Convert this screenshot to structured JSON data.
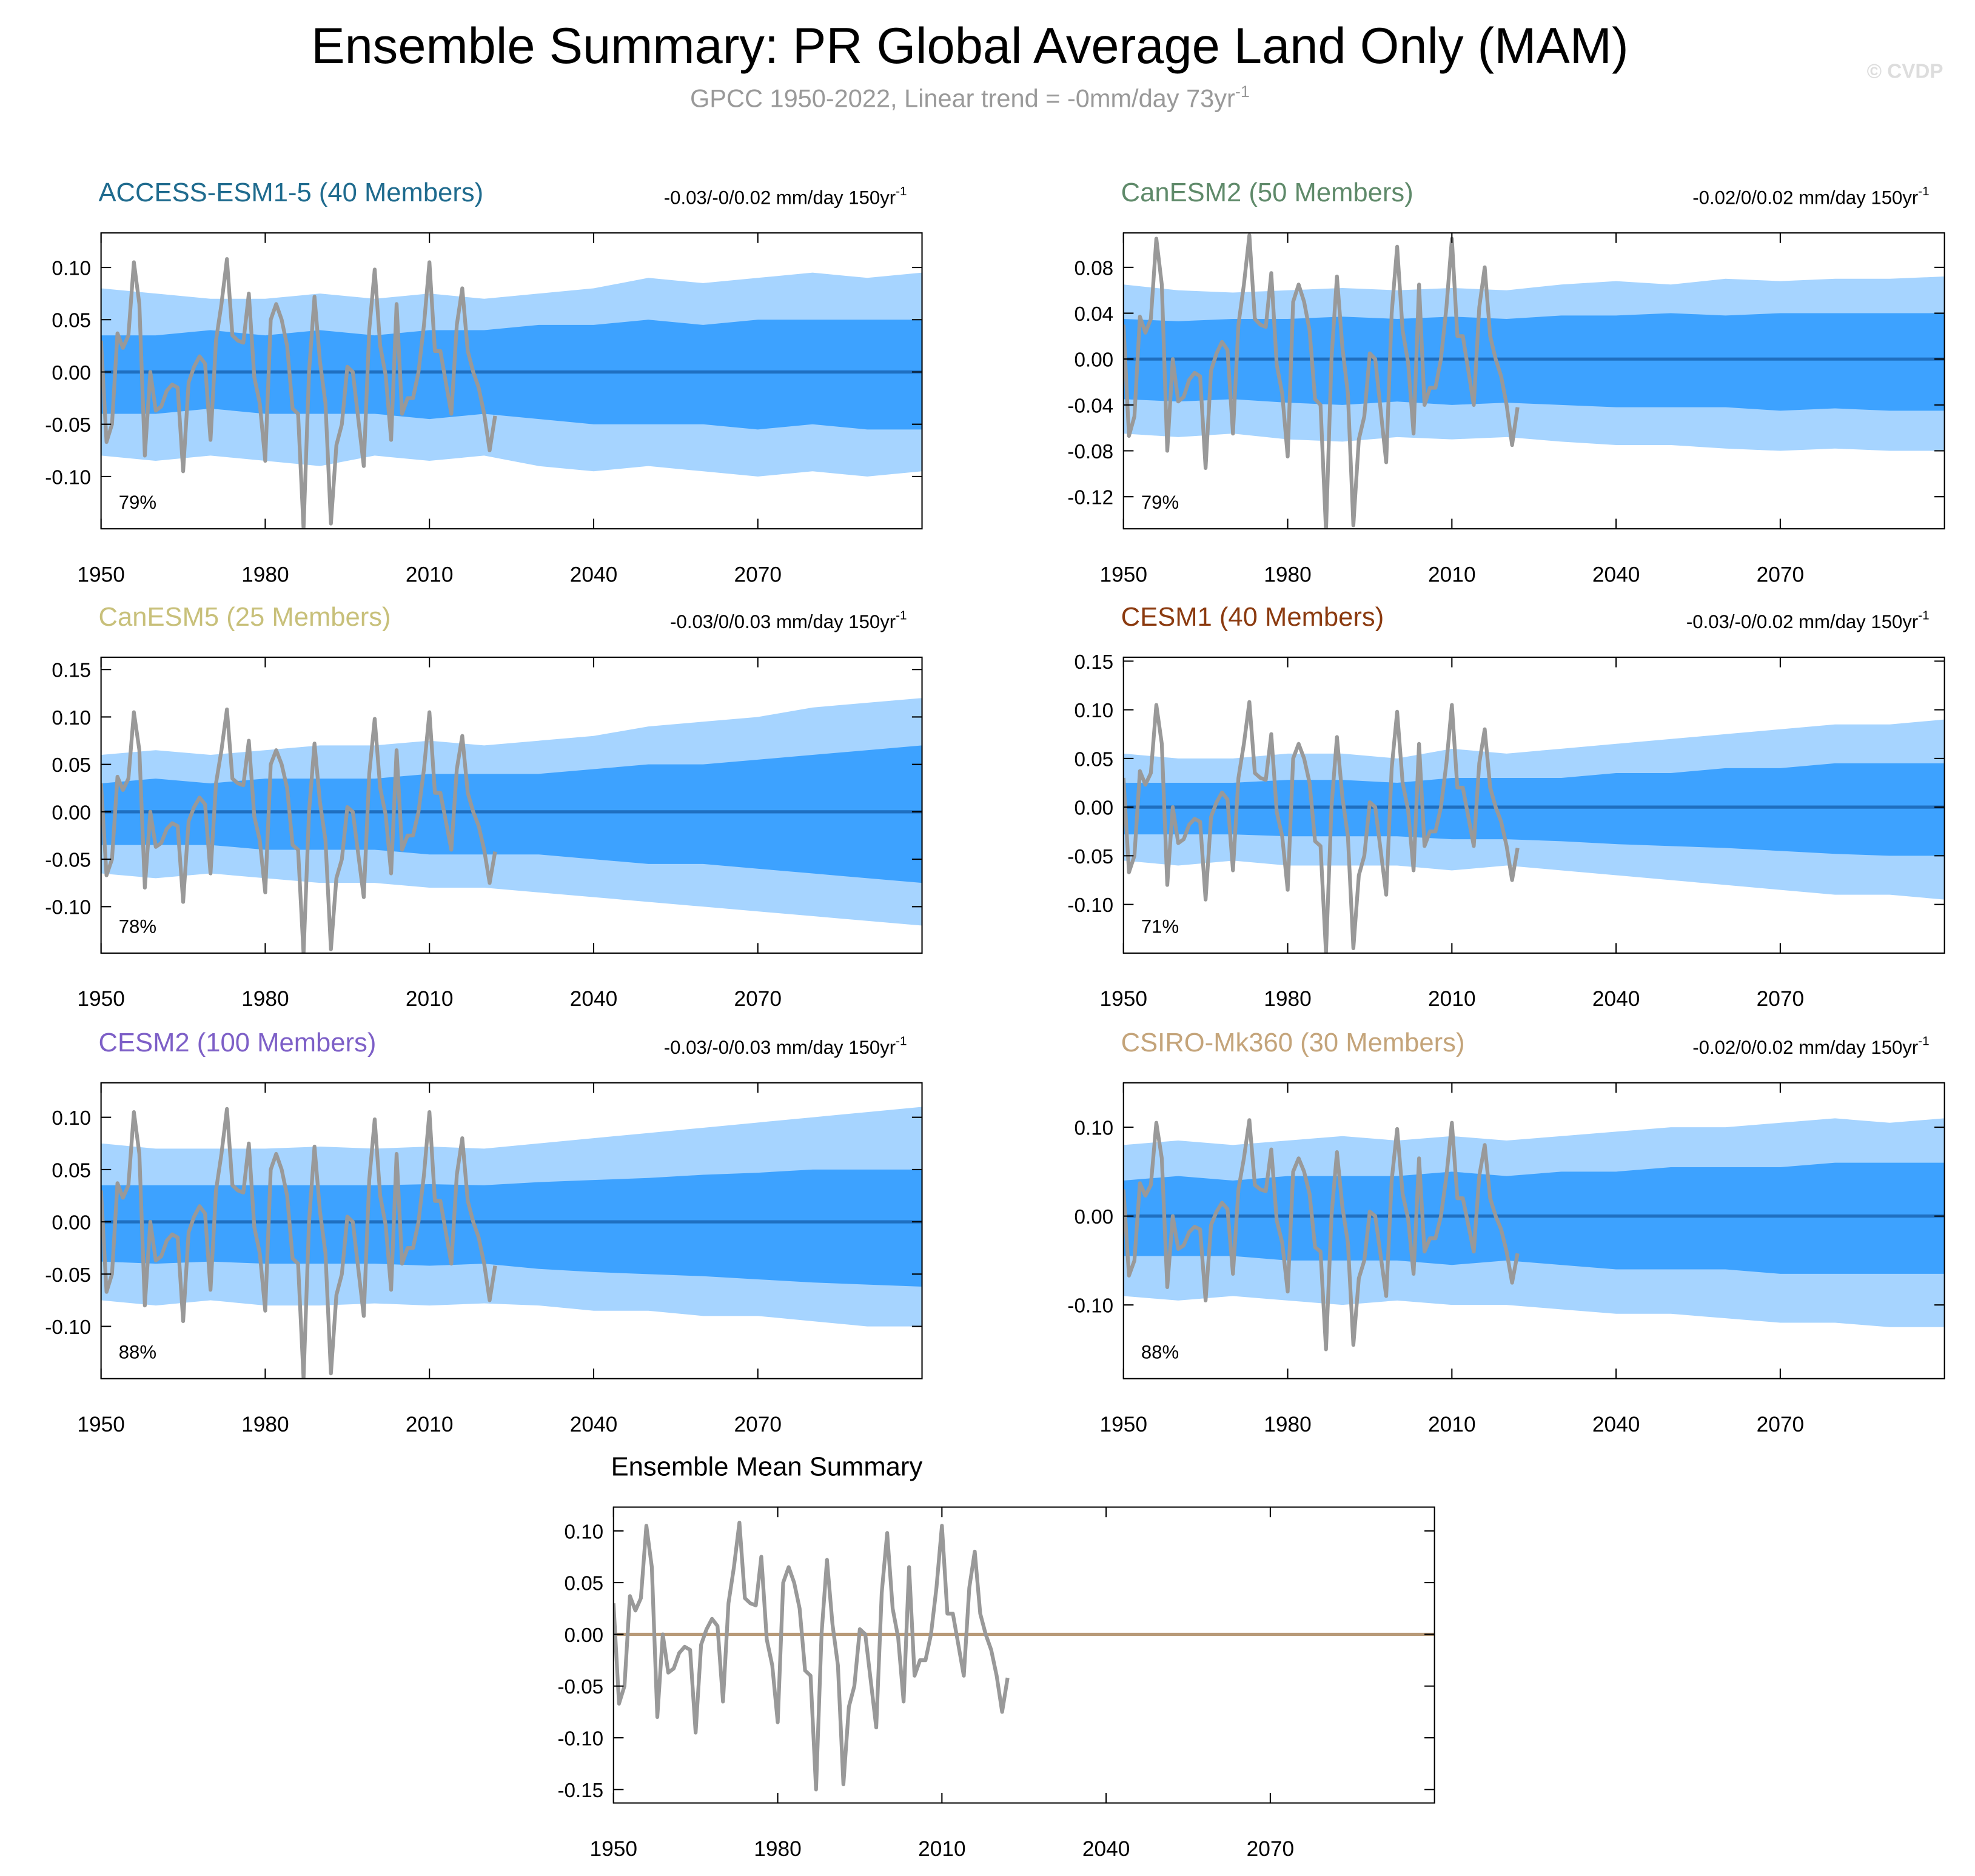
{
  "title": "Ensemble Summary: PR Global Average Land Only (MAM)",
  "subtitle": "GPCC 1950-2022, Linear trend = -0mm/day 73yr",
  "subtitle_sup": "-1",
  "watermark": "© CVDP",
  "observed": {
    "color": "#999999",
    "x": [
      1950,
      1951,
      1952,
      1953,
      1954,
      1955,
      1956,
      1957,
      1958,
      1959,
      1960,
      1961,
      1962,
      1963,
      1964,
      1965,
      1966,
      1967,
      1968,
      1969,
      1970,
      1971,
      1972,
      1973,
      1974,
      1975,
      1976,
      1977,
      1978,
      1979,
      1980,
      1981,
      1982,
      1983,
      1984,
      1985,
      1986,
      1987,
      1988,
      1989,
      1990,
      1991,
      1992,
      1993,
      1994,
      1995,
      1996,
      1997,
      1998,
      1999,
      2000,
      2001,
      2002,
      2003,
      2004,
      2005,
      2006,
      2007,
      2008,
      2009,
      2010,
      2011,
      2012,
      2013,
      2014,
      2015,
      2016,
      2017,
      2018,
      2019,
      2020,
      2021,
      2022
    ],
    "values": [
      0.03,
      -0.067,
      -0.05,
      0.037,
      0.023,
      0.035,
      0.105,
      0.065,
      -0.08,
      0.0,
      -0.037,
      -0.033,
      -0.018,
      -0.012,
      -0.015,
      -0.095,
      -0.01,
      0.005,
      0.015,
      0.008,
      -0.065,
      0.03,
      0.065,
      0.108,
      0.035,
      0.03,
      0.028,
      0.075,
      -0.005,
      -0.03,
      -0.085,
      0.05,
      0.065,
      0.05,
      0.025,
      -0.035,
      -0.04,
      -0.15,
      0.0,
      0.072,
      0.01,
      -0.03,
      -0.145,
      -0.07,
      -0.05,
      0.005,
      0.0,
      -0.045,
      -0.09,
      0.04,
      0.098,
      0.025,
      -0.003,
      -0.065,
      0.065,
      -0.04,
      -0.025,
      -0.025,
      0.0,
      0.045,
      0.105,
      0.02,
      0.02,
      -0.01,
      -0.04,
      0.045,
      0.08,
      0.02,
      0.0,
      -0.015,
      -0.04,
      -0.075,
      -0.042
    ]
  },
  "band_x": [
    1950,
    1960,
    1970,
    1980,
    1990,
    2000,
    2010,
    2020,
    2030,
    2040,
    2050,
    2060,
    2070,
    2080,
    2090,
    2100
  ],
  "chart_data": [
    {
      "type": "band",
      "title": "ACCESS-ESM1-5 (40 Members)",
      "title_color": "#1f6b8e",
      "trend": "-0.03/-0/0.02 mm/day 150yr",
      "trend_sup": "-1",
      "percent": "79%",
      "xlim": [
        1950,
        2100
      ],
      "xticks": [
        1950,
        1980,
        2010,
        2040,
        2070
      ],
      "ylim": [
        -0.15,
        0.133
      ],
      "yticks": [
        {
          "value": 0.1,
          "label": "0.10"
        },
        {
          "value": 0.05,
          "label": "0.05"
        },
        {
          "value": 0,
          "label": "0.00"
        },
        {
          "value": -0.05,
          "label": "-0.05"
        },
        {
          "value": -0.1,
          "label": "-0.10"
        }
      ],
      "bands": [
        {
          "color": "#a6d4ff",
          "high": [
            0.08,
            0.075,
            0.07,
            0.07,
            0.075,
            0.07,
            0.075,
            0.07,
            0.075,
            0.08,
            0.09,
            0.085,
            0.09,
            0.095,
            0.09,
            0.095
          ],
          "low": [
            -0.08,
            -0.085,
            -0.08,
            -0.085,
            -0.09,
            -0.08,
            -0.085,
            -0.08,
            -0.09,
            -0.095,
            -0.09,
            -0.095,
            -0.1,
            -0.095,
            -0.1,
            -0.095
          ]
        },
        {
          "color": "#3da2ff",
          "high": [
            0.035,
            0.035,
            0.04,
            0.035,
            0.04,
            0.035,
            0.04,
            0.04,
            0.045,
            0.045,
            0.05,
            0.045,
            0.05,
            0.05,
            0.05,
            0.05
          ],
          "low": [
            -0.04,
            -0.04,
            -0.035,
            -0.04,
            -0.04,
            -0.04,
            -0.045,
            -0.04,
            -0.045,
            -0.05,
            -0.05,
            -0.05,
            -0.055,
            -0.05,
            -0.055,
            -0.055
          ]
        }
      ],
      "mean": {
        "color": "#1f6fc0",
        "values": [
          0,
          0,
          0,
          0,
          0,
          0,
          0,
          0,
          0,
          0,
          0,
          0,
          0,
          0,
          0,
          0
        ]
      }
    },
    {
      "type": "band",
      "title": "CanESM2 (50 Members)",
      "title_color": "#5f8a6a",
      "trend": "-0.02/0/0.02 mm/day 150yr",
      "trend_sup": "-1",
      "percent": "79%",
      "xlim": [
        1950,
        2100
      ],
      "xticks": [
        1950,
        1980,
        2010,
        2040,
        2070
      ],
      "ylim": [
        -0.148,
        0.11
      ],
      "yticks": [
        {
          "value": 0.08,
          "label": "0.08"
        },
        {
          "value": 0.04,
          "label": "0.04"
        },
        {
          "value": 0,
          "label": "0.00"
        },
        {
          "value": -0.04,
          "label": "-0.04"
        },
        {
          "value": -0.08,
          "label": "-0.08"
        },
        {
          "value": -0.12,
          "label": "-0.12"
        }
      ],
      "bands": [
        {
          "color": "#a6d4ff",
          "high": [
            0.065,
            0.06,
            0.058,
            0.06,
            0.062,
            0.06,
            0.062,
            0.06,
            0.065,
            0.068,
            0.065,
            0.07,
            0.068,
            0.07,
            0.07,
            0.072
          ],
          "low": [
            -0.065,
            -0.068,
            -0.065,
            -0.07,
            -0.072,
            -0.068,
            -0.07,
            -0.068,
            -0.072,
            -0.075,
            -0.075,
            -0.078,
            -0.08,
            -0.078,
            -0.08,
            -0.08
          ]
        },
        {
          "color": "#3da2ff",
          "high": [
            0.035,
            0.033,
            0.035,
            0.035,
            0.037,
            0.035,
            0.037,
            0.035,
            0.038,
            0.038,
            0.04,
            0.038,
            0.04,
            0.04,
            0.04,
            0.04
          ],
          "low": [
            -0.035,
            -0.037,
            -0.035,
            -0.038,
            -0.04,
            -0.037,
            -0.04,
            -0.038,
            -0.04,
            -0.042,
            -0.042,
            -0.042,
            -0.045,
            -0.043,
            -0.045,
            -0.045
          ]
        }
      ],
      "mean": {
        "color": "#1f6fc0",
        "values": [
          0,
          0,
          0,
          0,
          0,
          0,
          0,
          0,
          0,
          0,
          0,
          0,
          0,
          0,
          0,
          0
        ]
      }
    },
    {
      "type": "band",
      "title": "CanESM5 (25 Members)",
      "title_color": "#c8c07a",
      "trend": "-0.03/0/0.03 mm/day 150yr",
      "trend_sup": "-1",
      "percent": "78%",
      "xlim": [
        1950,
        2100
      ],
      "xticks": [
        1950,
        1980,
        2010,
        2040,
        2070
      ],
      "ylim": [
        -0.149,
        0.163
      ],
      "yticks": [
        {
          "value": 0.15,
          "label": "0.15"
        },
        {
          "value": 0.1,
          "label": "0.10"
        },
        {
          "value": 0.05,
          "label": "0.05"
        },
        {
          "value": 0,
          "label": "0.00"
        },
        {
          "value": -0.05,
          "label": "-0.05"
        },
        {
          "value": -0.1,
          "label": "-0.10"
        }
      ],
      "bands": [
        {
          "color": "#a6d4ff",
          "high": [
            0.06,
            0.065,
            0.06,
            0.065,
            0.07,
            0.07,
            0.075,
            0.07,
            0.075,
            0.08,
            0.09,
            0.095,
            0.1,
            0.11,
            0.115,
            0.12
          ],
          "low": [
            -0.065,
            -0.07,
            -0.065,
            -0.07,
            -0.075,
            -0.075,
            -0.08,
            -0.08,
            -0.085,
            -0.09,
            -0.095,
            -0.1,
            -0.105,
            -0.11,
            -0.115,
            -0.12
          ]
        },
        {
          "color": "#3da2ff",
          "high": [
            0.03,
            0.035,
            0.03,
            0.035,
            0.035,
            0.035,
            0.04,
            0.04,
            0.04,
            0.045,
            0.05,
            0.05,
            0.055,
            0.06,
            0.065,
            0.07
          ],
          "low": [
            -0.035,
            -0.035,
            -0.035,
            -0.04,
            -0.04,
            -0.04,
            -0.045,
            -0.045,
            -0.045,
            -0.05,
            -0.055,
            -0.055,
            -0.06,
            -0.065,
            -0.07,
            -0.075
          ]
        }
      ],
      "mean": {
        "color": "#1f6fc0",
        "values": [
          0,
          0,
          0,
          0,
          0,
          0,
          0,
          0,
          0,
          0,
          0,
          0,
          0,
          0,
          0,
          0
        ]
      }
    },
    {
      "type": "band",
      "title": "CESM1 (40 Members)",
      "title_color": "#8b3a0f",
      "trend": "-0.03/-0/0.02 mm/day 150yr",
      "trend_sup": "-1",
      "percent": "71%",
      "xlim": [
        1950,
        2100
      ],
      "xticks": [
        1950,
        1980,
        2010,
        2040,
        2070
      ],
      "ylim": [
        -0.15,
        0.154
      ],
      "yticks": [
        {
          "value": 0.15,
          "label": "0.15"
        },
        {
          "value": 0.1,
          "label": "0.10"
        },
        {
          "value": 0.05,
          "label": "0.05"
        },
        {
          "value": 0,
          "label": "0.00"
        },
        {
          "value": -0.05,
          "label": "-0.05"
        },
        {
          "value": -0.1,
          "label": "-0.10"
        }
      ],
      "bands": [
        {
          "color": "#a6d4ff",
          "high": [
            0.055,
            0.05,
            0.05,
            0.055,
            0.055,
            0.05,
            0.06,
            0.055,
            0.06,
            0.065,
            0.07,
            0.075,
            0.08,
            0.085,
            0.085,
            0.09
          ],
          "low": [
            -0.055,
            -0.06,
            -0.055,
            -0.06,
            -0.06,
            -0.06,
            -0.065,
            -0.06,
            -0.065,
            -0.07,
            -0.075,
            -0.08,
            -0.085,
            -0.09,
            -0.09,
            -0.095
          ]
        },
        {
          "color": "#3da2ff",
          "high": [
            0.025,
            0.025,
            0.025,
            0.028,
            0.028,
            0.025,
            0.03,
            0.03,
            0.03,
            0.035,
            0.035,
            0.04,
            0.04,
            0.045,
            0.045,
            0.045
          ],
          "low": [
            -0.028,
            -0.028,
            -0.028,
            -0.03,
            -0.03,
            -0.03,
            -0.033,
            -0.033,
            -0.035,
            -0.038,
            -0.04,
            -0.042,
            -0.045,
            -0.048,
            -0.05,
            -0.05
          ]
        }
      ],
      "mean": {
        "color": "#1f6fc0",
        "values": [
          0,
          0,
          0,
          0,
          0,
          0,
          0,
          0,
          0,
          0,
          0,
          0,
          0,
          0,
          0,
          0
        ]
      }
    },
    {
      "type": "band",
      "title": "CESM2 (100 Members)",
      "title_color": "#7d5fc7",
      "trend": "-0.03/-0/0.03 mm/day 150yr",
      "trend_sup": "-1",
      "percent": "88%",
      "xlim": [
        1950,
        2100
      ],
      "xticks": [
        1950,
        1980,
        2010,
        2040,
        2070
      ],
      "ylim": [
        -0.15,
        0.133
      ],
      "yticks": [
        {
          "value": 0.1,
          "label": "0.10"
        },
        {
          "value": 0.05,
          "label": "0.05"
        },
        {
          "value": 0,
          "label": "0.00"
        },
        {
          "value": -0.05,
          "label": "-0.05"
        },
        {
          "value": -0.1,
          "label": "-0.10"
        }
      ],
      "bands": [
        {
          "color": "#a6d4ff",
          "high": [
            0.075,
            0.07,
            0.07,
            0.07,
            0.072,
            0.07,
            0.072,
            0.07,
            0.075,
            0.08,
            0.085,
            0.09,
            0.095,
            0.1,
            0.105,
            0.11
          ],
          "low": [
            -0.075,
            -0.08,
            -0.075,
            -0.08,
            -0.08,
            -0.078,
            -0.08,
            -0.078,
            -0.08,
            -0.085,
            -0.085,
            -0.09,
            -0.09,
            -0.095,
            -0.1,
            -0.1
          ]
        },
        {
          "color": "#3da2ff",
          "high": [
            0.035,
            0.035,
            0.035,
            0.035,
            0.035,
            0.035,
            0.036,
            0.035,
            0.038,
            0.04,
            0.042,
            0.045,
            0.047,
            0.05,
            0.05,
            0.05
          ],
          "low": [
            -0.038,
            -0.04,
            -0.038,
            -0.04,
            -0.04,
            -0.04,
            -0.042,
            -0.04,
            -0.045,
            -0.048,
            -0.05,
            -0.052,
            -0.055,
            -0.058,
            -0.06,
            -0.062
          ]
        }
      ],
      "mean": {
        "color": "#1f6fc0",
        "values": [
          0,
          0,
          0,
          0,
          0,
          0,
          0,
          0,
          0,
          0,
          0,
          0,
          0,
          0,
          0,
          0
        ]
      }
    },
    {
      "type": "band",
      "title": "CSIRO-Mk360 (30 Members)",
      "title_color": "#c4a47a",
      "trend": "-0.02/0/0.02 mm/day 150yr",
      "trend_sup": "-1",
      "percent": "88%",
      "xlim": [
        1950,
        2100
      ],
      "xticks": [
        1950,
        1980,
        2010,
        2040,
        2070
      ],
      "ylim": [
        -0.183,
        0.15
      ],
      "yticks": [
        {
          "value": 0.1,
          "label": "0.10"
        },
        {
          "value": 0,
          "label": "0.00"
        },
        {
          "value": -0.1,
          "label": "-0.10"
        }
      ],
      "bands": [
        {
          "color": "#a6d4ff",
          "high": [
            0.08,
            0.085,
            0.08,
            0.085,
            0.09,
            0.085,
            0.09,
            0.085,
            0.09,
            0.095,
            0.1,
            0.1,
            0.105,
            0.11,
            0.105,
            0.11
          ],
          "low": [
            -0.09,
            -0.095,
            -0.09,
            -0.095,
            -0.1,
            -0.095,
            -0.1,
            -0.1,
            -0.105,
            -0.11,
            -0.11,
            -0.115,
            -0.12,
            -0.12,
            -0.125,
            -0.125
          ]
        },
        {
          "color": "#3da2ff",
          "high": [
            0.04,
            0.045,
            0.04,
            0.045,
            0.045,
            0.045,
            0.05,
            0.045,
            0.05,
            0.05,
            0.055,
            0.055,
            0.055,
            0.06,
            0.06,
            0.06
          ],
          "low": [
            -0.045,
            -0.045,
            -0.045,
            -0.05,
            -0.05,
            -0.05,
            -0.055,
            -0.05,
            -0.055,
            -0.06,
            -0.06,
            -0.06,
            -0.065,
            -0.065,
            -0.065,
            -0.065
          ]
        }
      ],
      "mean": {
        "color": "#1f6fc0",
        "values": [
          0,
          0,
          0,
          0,
          0,
          0,
          0,
          0,
          0,
          0,
          0,
          0,
          0,
          0,
          0,
          0
        ]
      }
    },
    {
      "type": "line",
      "title": "Ensemble Mean Summary",
      "title_color": "#000000",
      "xlim": [
        1950,
        2100
      ],
      "xticks": [
        1950,
        1980,
        2010,
        2040,
        2070
      ],
      "ylim": [
        -0.163,
        0.123
      ],
      "yticks": [
        {
          "value": 0.1,
          "label": "0.10"
        },
        {
          "value": 0.05,
          "label": "0.05"
        },
        {
          "value": 0,
          "label": "0.00"
        },
        {
          "value": -0.05,
          "label": "-0.05"
        },
        {
          "value": -0.1,
          "label": "-0.10"
        },
        {
          "value": -0.15,
          "label": "-0.15"
        }
      ],
      "mean": {
        "color": "#b89a78",
        "values": [
          0,
          0,
          0,
          0,
          0,
          0,
          0,
          0,
          0,
          0,
          0,
          0,
          0,
          0,
          0,
          0
        ]
      }
    }
  ]
}
